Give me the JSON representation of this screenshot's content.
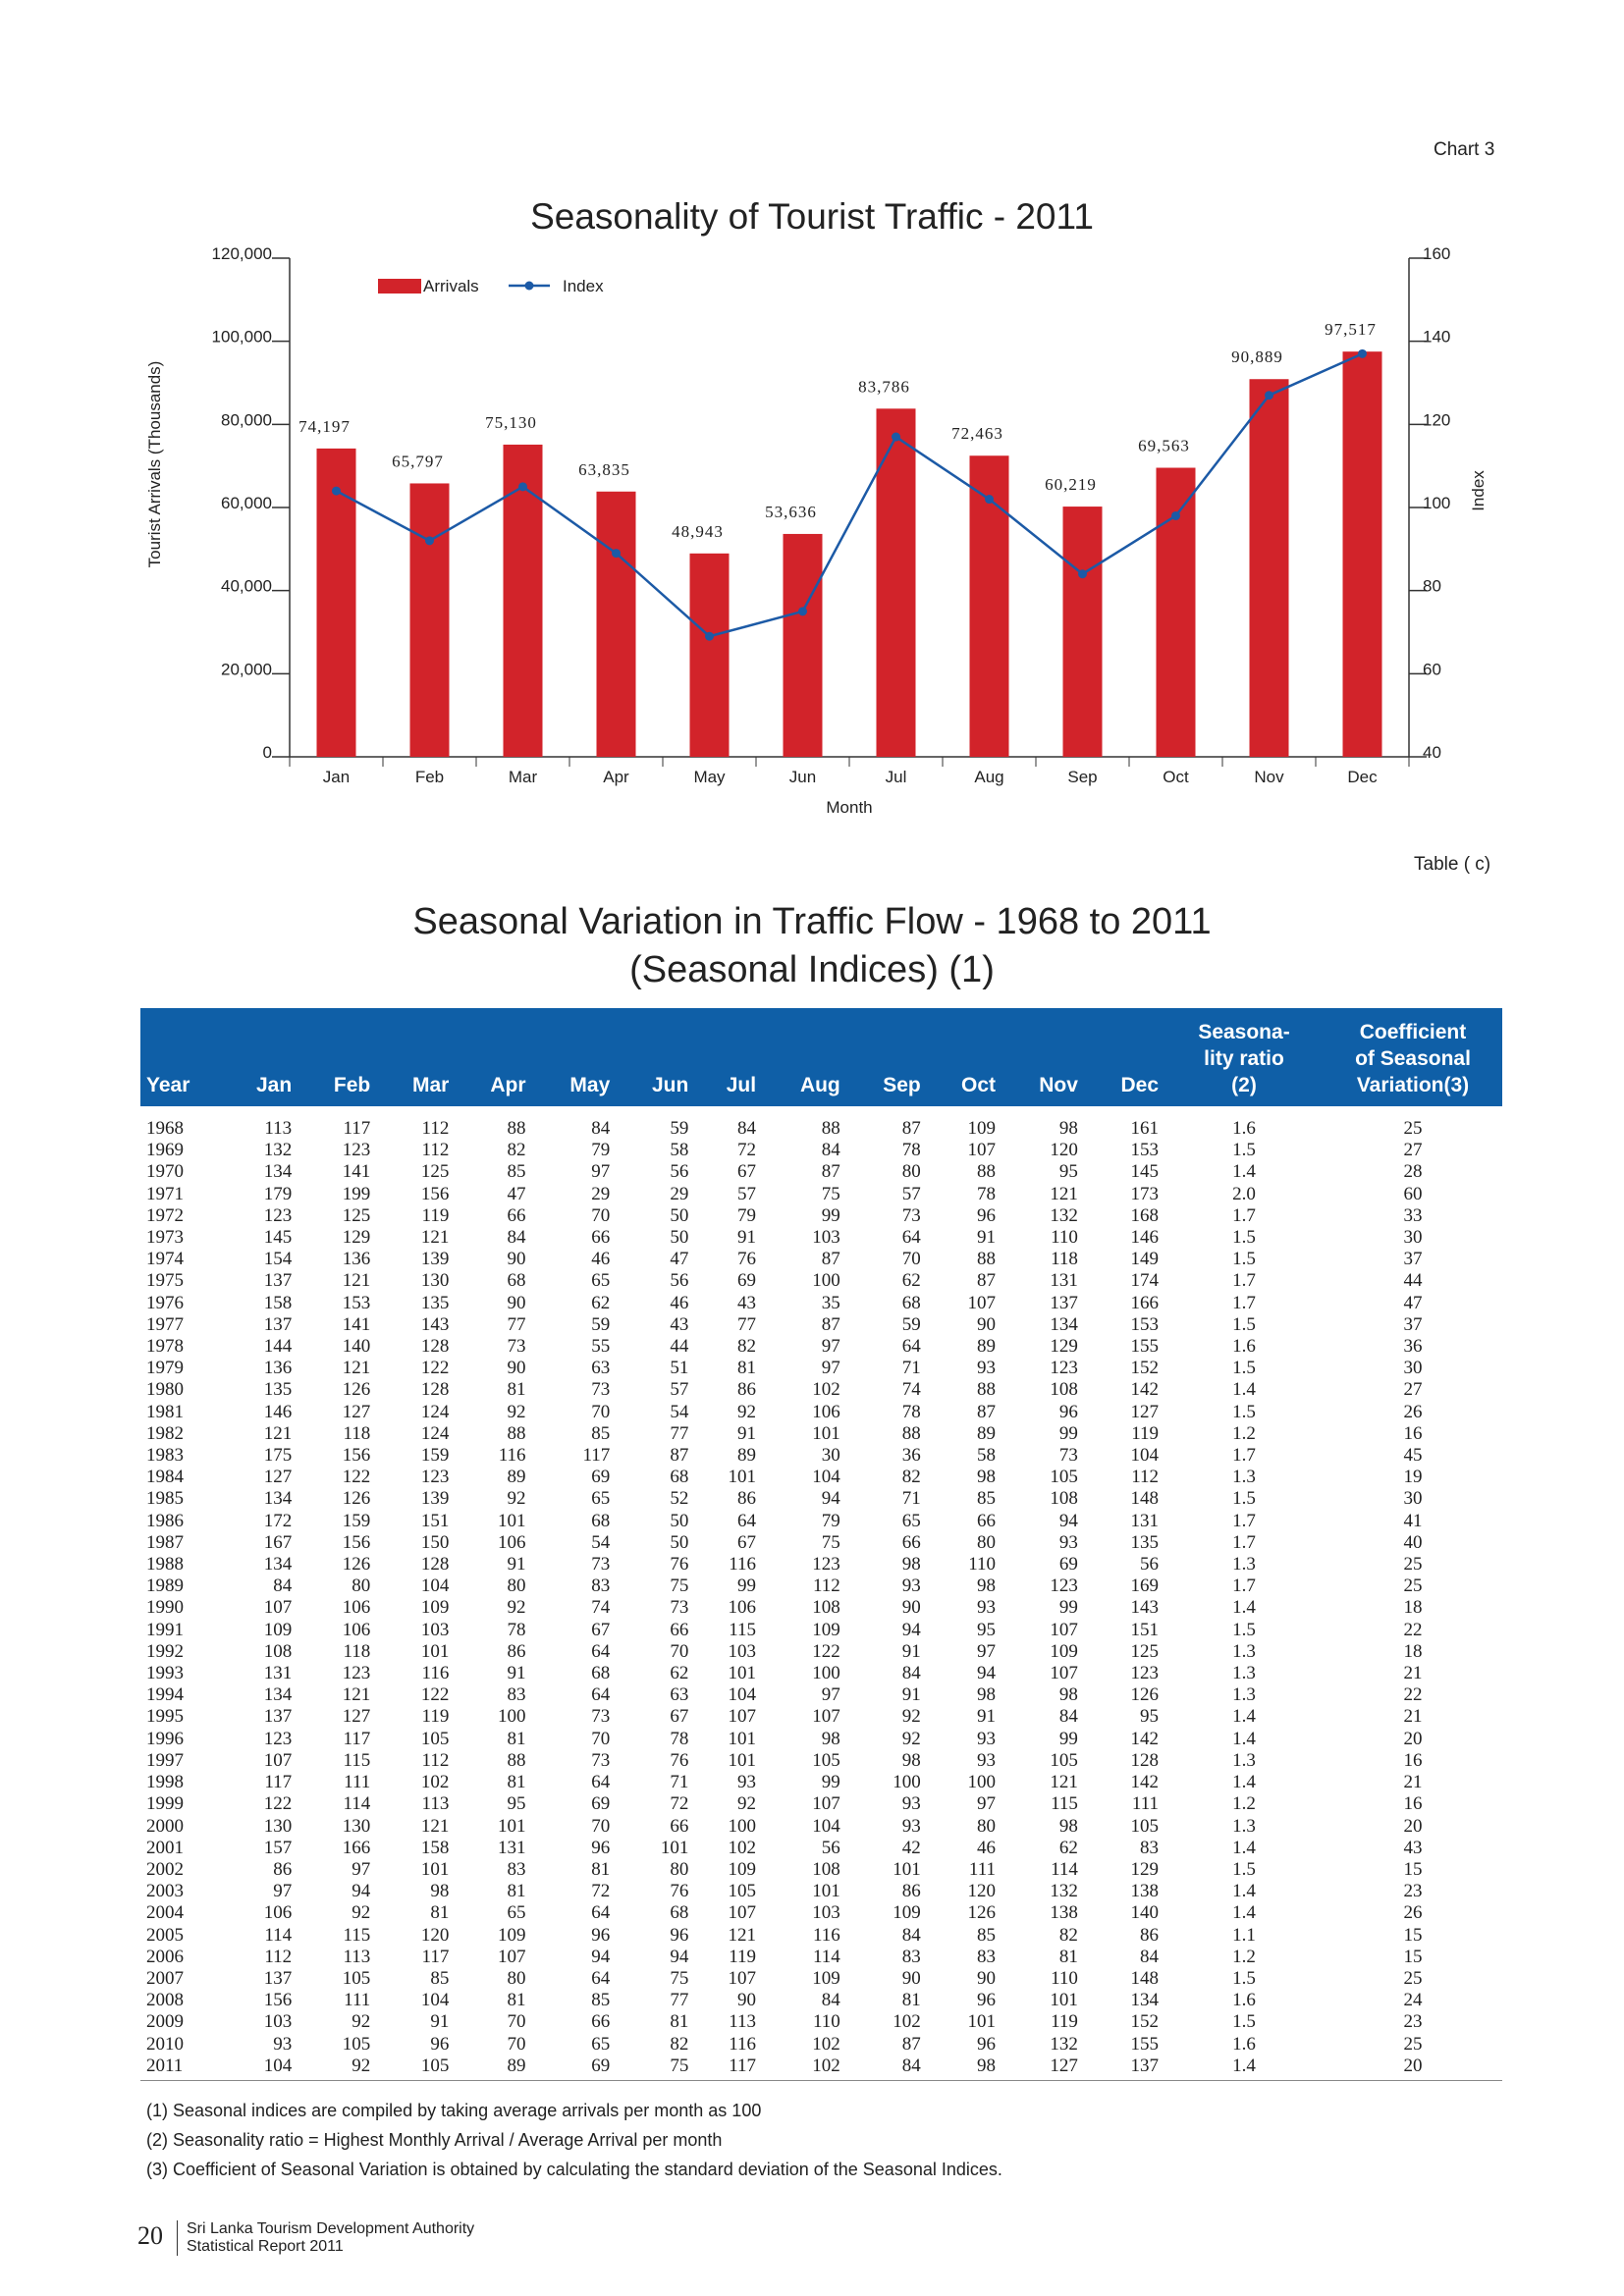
{
  "chart_label": "Chart 3",
  "table_label": "Table ( c)",
  "chart_data": {
    "type": "bar",
    "title": "Seasonality of Tourist Traffic - 2011",
    "xlabel": "Month",
    "ylabel": "Tourist Arrivals (Thousands)",
    "y2label": "Index",
    "categories": [
      "Jan",
      "Feb",
      "Mar",
      "Apr",
      "May",
      "Jun",
      "Jul",
      "Aug",
      "Sep",
      "Oct",
      "Nov",
      "Dec"
    ],
    "series": [
      {
        "name": "Arrivals",
        "type": "bar",
        "axis": "left",
        "color": "#d2232a",
        "values": [
          74197,
          65797,
          75130,
          63835,
          48943,
          53636,
          83786,
          72463,
          60219,
          69563,
          90889,
          97517
        ],
        "labels": [
          "74,197",
          "65,797",
          "75,130",
          "63,835",
          "48,943",
          "53,636",
          "83,786",
          "72,463",
          "60,219",
          "69,563",
          "90,889",
          "97,517"
        ]
      },
      {
        "name": "Index",
        "type": "line",
        "axis": "right",
        "color": "#1c5aa6",
        "values": [
          104,
          92,
          105,
          89,
          69,
          75,
          117,
          102,
          84,
          98,
          127,
          137
        ]
      }
    ],
    "ylim": [
      0,
      120000
    ],
    "yticks": [
      "0",
      "20,000",
      "40,000",
      "60,000",
      "80,000",
      "100,000",
      "120,000"
    ],
    "y2lim": [
      40,
      160
    ],
    "y2ticks": [
      "40",
      "60",
      "80",
      "100",
      "120",
      "140",
      "160"
    ],
    "legend": "top-left",
    "grid": false
  },
  "table": {
    "title_line1": "Seasonal Variation in Traffic Flow - 1968 to 2011",
    "title_line2": "(Seasonal Indices) (1)",
    "headers": {
      "year": "Year",
      "jan": "Jan",
      "feb": "Feb",
      "mar": "Mar",
      "apr": "Apr",
      "may": "May",
      "jun": "Jun",
      "jul": "Jul",
      "aug": "Aug",
      "sep": "Sep",
      "oct": "Oct",
      "nov": "Nov",
      "dec": "Dec",
      "ratio_l1": "Seasona-",
      "ratio_l2": "lity ratio",
      "ratio_l3": "(2)",
      "coef_l1": "Coefficient",
      "coef_l2": "of Seasonal",
      "coef_l3": "Variation(3)"
    },
    "rows": [
      [
        "1968",
        "113",
        "117",
        "112",
        "88",
        "84",
        "59",
        "84",
        "88",
        "87",
        "109",
        "98",
        "161",
        "1.6",
        "25"
      ],
      [
        "1969",
        "132",
        "123",
        "112",
        "82",
        "79",
        "58",
        "72",
        "84",
        "78",
        "107",
        "120",
        "153",
        "1.5",
        "27"
      ],
      [
        "1970",
        "134",
        "141",
        "125",
        "85",
        "97",
        "56",
        "67",
        "87",
        "80",
        "88",
        "95",
        "145",
        "1.4",
        "28"
      ],
      [
        "1971",
        "179",
        "199",
        "156",
        "47",
        "29",
        "29",
        "57",
        "75",
        "57",
        "78",
        "121",
        "173",
        "2.0",
        "60"
      ],
      [
        "1972",
        "123",
        "125",
        "119",
        "66",
        "70",
        "50",
        "79",
        "99",
        "73",
        "96",
        "132",
        "168",
        "1.7",
        "33"
      ],
      [
        "1973",
        "145",
        "129",
        "121",
        "84",
        "66",
        "50",
        "91",
        "103",
        "64",
        "91",
        "110",
        "146",
        "1.5",
        "30"
      ],
      [
        "1974",
        "154",
        "136",
        "139",
        "90",
        "46",
        "47",
        "76",
        "87",
        "70",
        "88",
        "118",
        "149",
        "1.5",
        "37"
      ],
      [
        "1975",
        "137",
        "121",
        "130",
        "68",
        "65",
        "56",
        "69",
        "100",
        "62",
        "87",
        "131",
        "174",
        "1.7",
        "44"
      ],
      [
        "1976",
        "158",
        "153",
        "135",
        "90",
        "62",
        "46",
        "43",
        "35",
        "68",
        "107",
        "137",
        "166",
        "1.7",
        "47"
      ],
      [
        "1977",
        "137",
        "141",
        "143",
        "77",
        "59",
        "43",
        "77",
        "87",
        "59",
        "90",
        "134",
        "153",
        "1.5",
        "37"
      ],
      [
        "1978",
        "144",
        "140",
        "128",
        "73",
        "55",
        "44",
        "82",
        "97",
        "64",
        "89",
        "129",
        "155",
        "1.6",
        "36"
      ],
      [
        "1979",
        "136",
        "121",
        "122",
        "90",
        "63",
        "51",
        "81",
        "97",
        "71",
        "93",
        "123",
        "152",
        "1.5",
        "30"
      ],
      [
        "1980",
        "135",
        "126",
        "128",
        "81",
        "73",
        "57",
        "86",
        "102",
        "74",
        "88",
        "108",
        "142",
        "1.4",
        "27"
      ],
      [
        "1981",
        "146",
        "127",
        "124",
        "92",
        "70",
        "54",
        "92",
        "106",
        "78",
        "87",
        "96",
        "127",
        "1.5",
        "26"
      ],
      [
        "1982",
        "121",
        "118",
        "124",
        "88",
        "85",
        "77",
        "91",
        "101",
        "88",
        "89",
        "99",
        "119",
        "1.2",
        "16"
      ],
      [
        "1983",
        "175",
        "156",
        "159",
        "116",
        "117",
        "87",
        "89",
        "30",
        "36",
        "58",
        "73",
        "104",
        "1.7",
        "45"
      ],
      [
        "1984",
        "127",
        "122",
        "123",
        "89",
        "69",
        "68",
        "101",
        "104",
        "82",
        "98",
        "105",
        "112",
        "1.3",
        "19"
      ],
      [
        "1985",
        "134",
        "126",
        "139",
        "92",
        "65",
        "52",
        "86",
        "94",
        "71",
        "85",
        "108",
        "148",
        "1.5",
        "30"
      ],
      [
        "1986",
        "172",
        "159",
        "151",
        "101",
        "68",
        "50",
        "64",
        "79",
        "65",
        "66",
        "94",
        "131",
        "1.7",
        "41"
      ],
      [
        "1987",
        "167",
        "156",
        "150",
        "106",
        "54",
        "50",
        "67",
        "75",
        "66",
        "80",
        "93",
        "135",
        "1.7",
        "40"
      ],
      [
        "1988",
        "134",
        "126",
        "128",
        "91",
        "73",
        "76",
        "116",
        "123",
        "98",
        "110",
        "69",
        "56",
        "1.3",
        "25"
      ],
      [
        "1989",
        "84",
        "80",
        "104",
        "80",
        "83",
        "75",
        "99",
        "112",
        "93",
        "98",
        "123",
        "169",
        "1.7",
        "25"
      ],
      [
        "1990",
        "107",
        "106",
        "109",
        "92",
        "74",
        "73",
        "106",
        "108",
        "90",
        "93",
        "99",
        "143",
        "1.4",
        "18"
      ],
      [
        "1991",
        "109",
        "106",
        "103",
        "78",
        "67",
        "66",
        "115",
        "109",
        "94",
        "95",
        "107",
        "151",
        "1.5",
        "22"
      ],
      [
        "1992",
        "108",
        "118",
        "101",
        "86",
        "64",
        "70",
        "103",
        "122",
        "91",
        "97",
        "109",
        "125",
        "1.3",
        "18"
      ],
      [
        "1993",
        "131",
        "123",
        "116",
        "91",
        "68",
        "62",
        "101",
        "100",
        "84",
        "94",
        "107",
        "123",
        "1.3",
        "21"
      ],
      [
        "1994",
        "134",
        "121",
        "122",
        "83",
        "64",
        "63",
        "104",
        "97",
        "91",
        "98",
        "98",
        "126",
        "1.3",
        "22"
      ],
      [
        "1995",
        "137",
        "127",
        "119",
        "100",
        "73",
        "67",
        "107",
        "107",
        "92",
        "91",
        "84",
        "95",
        "1.4",
        "21"
      ],
      [
        "1996",
        "123",
        "117",
        "105",
        "81",
        "70",
        "78",
        "101",
        "98",
        "92",
        "93",
        "99",
        "142",
        "1.4",
        "20"
      ],
      [
        "1997",
        "107",
        "115",
        "112",
        "88",
        "73",
        "76",
        "101",
        "105",
        "98",
        "93",
        "105",
        "128",
        "1.3",
        "16"
      ],
      [
        "1998",
        "117",
        "111",
        "102",
        "81",
        "64",
        "71",
        "93",
        "99",
        "100",
        "100",
        "121",
        "142",
        "1.4",
        "21"
      ],
      [
        "1999",
        "122",
        "114",
        "113",
        "95",
        "69",
        "72",
        "92",
        "107",
        "93",
        "97",
        "115",
        "111",
        "1.2",
        "16"
      ],
      [
        "2000",
        "130",
        "130",
        "121",
        "101",
        "70",
        "66",
        "100",
        "104",
        "93",
        "80",
        "98",
        "105",
        "1.3",
        "20"
      ],
      [
        "2001",
        "157",
        "166",
        "158",
        "131",
        "96",
        "101",
        "102",
        "56",
        "42",
        "46",
        "62",
        "83",
        "1.4",
        "43"
      ],
      [
        "2002",
        "86",
        "97",
        "101",
        "83",
        "81",
        "80",
        "109",
        "108",
        "101",
        "111",
        "114",
        "129",
        "1.5",
        "15"
      ],
      [
        "2003",
        "97",
        "94",
        "98",
        "81",
        "72",
        "76",
        "105",
        "101",
        "86",
        "120",
        "132",
        "138",
        "1.4",
        "23"
      ],
      [
        "2004",
        "106",
        "92",
        "81",
        "65",
        "64",
        "68",
        "107",
        "103",
        "109",
        "126",
        "138",
        "140",
        "1.4",
        "26"
      ],
      [
        "2005",
        "114",
        "115",
        "120",
        "109",
        "96",
        "96",
        "121",
        "116",
        "84",
        "85",
        "82",
        "86",
        "1.1",
        "15"
      ],
      [
        "2006",
        "112",
        "113",
        "117",
        "107",
        "94",
        "94",
        "119",
        "114",
        "83",
        "83",
        "81",
        "84",
        "1.2",
        "15"
      ],
      [
        "2007",
        "137",
        "105",
        "85",
        "80",
        "64",
        "75",
        "107",
        "109",
        "90",
        "90",
        "110",
        "148",
        "1.5",
        "25"
      ],
      [
        "2008",
        "156",
        "111",
        "104",
        "81",
        "85",
        "77",
        "90",
        "84",
        "81",
        "96",
        "101",
        "134",
        "1.6",
        "24"
      ],
      [
        "2009",
        "103",
        "92",
        "91",
        "70",
        "66",
        "81",
        "113",
        "110",
        "102",
        "101",
        "119",
        "152",
        "1.5",
        "23"
      ],
      [
        "2010",
        "93",
        "105",
        "96",
        "70",
        "65",
        "82",
        "116",
        "102",
        "87",
        "96",
        "132",
        "155",
        "1.6",
        "25"
      ],
      [
        "2011",
        "104",
        "92",
        "105",
        "89",
        "69",
        "75",
        "117",
        "102",
        "84",
        "98",
        "127",
        "137",
        "1.4",
        "20"
      ]
    ]
  },
  "notes": [
    "(1) Seasonal indices are compiled by taking average arrivals per month as 100",
    "(2) Seasonality ratio = Highest Monthly Arrival / Average Arrival per month",
    "(3) Coefficient of Seasonal Variation is obtained by calculating the standard deviation of the Seasonal Indices."
  ],
  "footer": {
    "page_number": "20",
    "org_line1": "Sri Lanka Tourism Development Authority",
    "org_line2": "Statistical Report 2011"
  }
}
